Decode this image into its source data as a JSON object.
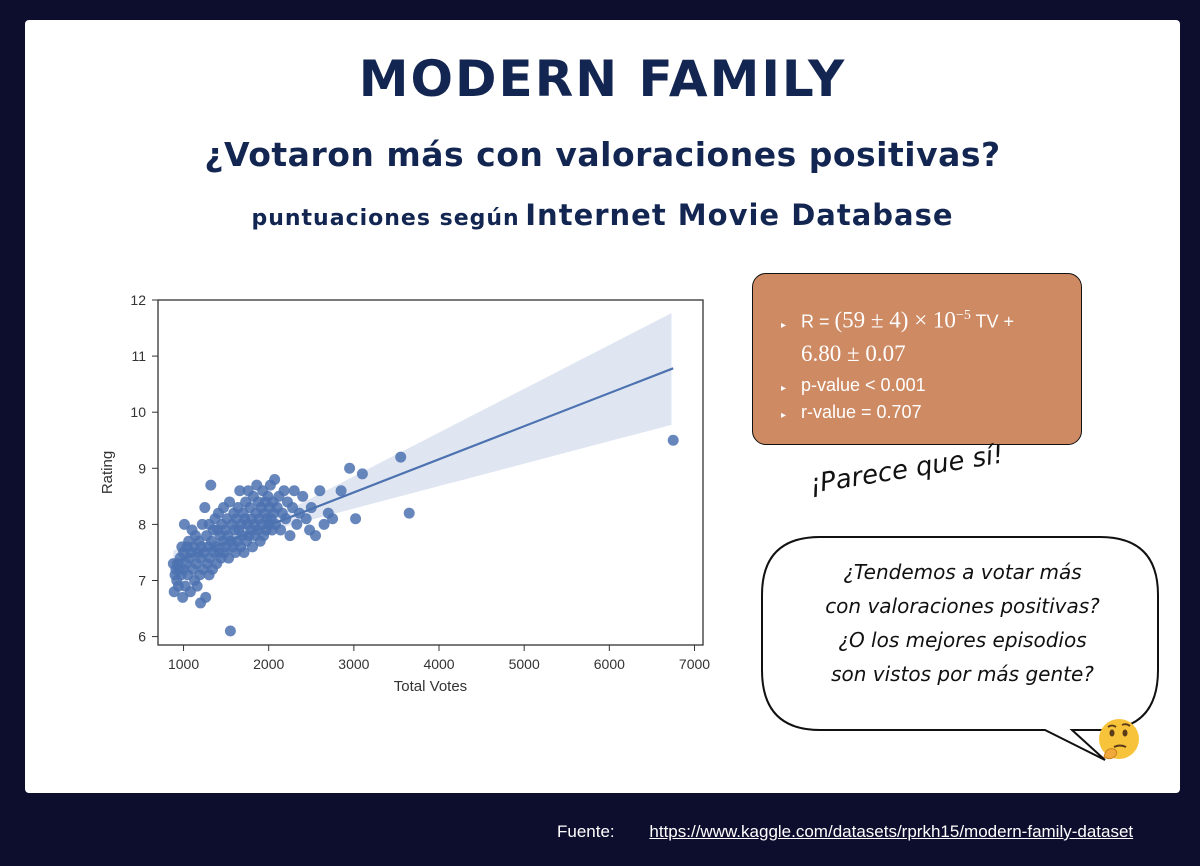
{
  "header": {
    "title": "MODERN FAMILY",
    "subtitle": "¿Votaron más con valoraciones positivas?",
    "source_prefix": "puntuaciones según",
    "source_name": "Internet Movie Database"
  },
  "stats": {
    "formula_r": "R = ",
    "formula_main": "(59 ± 4) × 10",
    "formula_exp": "−5",
    "formula_tv": " TV +",
    "formula_intercept": "6.80 ± 0.07",
    "pvalue": "p-value < 0.001",
    "rvalue": "r-value = 0.707"
  },
  "annotation": "¡Parece que sí!",
  "bubble": {
    "line1": "¿Tendemos a votar más",
    "line2": "con valoraciones positivas?",
    "line3": "¿O los mejores episodios",
    "line4": "son vistos por más gente?"
  },
  "emoji": "thinking-face",
  "footer": {
    "label": "Fuente:",
    "url": "https://www.kaggle.com/datasets/rprkh15/modern-family-dataset"
  },
  "colors": {
    "background": "#0d0d2e",
    "title": "#132652",
    "points": "#4c72b0",
    "stats_box": "#cd8a63"
  },
  "chart_data": {
    "type": "scatter",
    "xlabel": "Total Votes",
    "ylabel": "Rating",
    "xlim": [
      700,
      7100
    ],
    "ylim": [
      5.85,
      12
    ],
    "xticks": [
      1000,
      2000,
      3000,
      4000,
      5000,
      6000,
      7000
    ],
    "yticks": [
      6,
      7,
      8,
      9,
      10,
      11,
      12
    ],
    "regression": {
      "slope": 0.00059,
      "intercept": 6.8,
      "x_range": [
        880,
        6750
      ]
    },
    "points": [
      [
        880,
        7.3
      ],
      [
        890,
        6.8
      ],
      [
        900,
        7.1
      ],
      [
        910,
        7.2
      ],
      [
        920,
        7.0
      ],
      [
        930,
        7.3
      ],
      [
        940,
        6.9
      ],
      [
        950,
        7.2
      ],
      [
        960,
        7.4
      ],
      [
        970,
        7.1
      ],
      [
        980,
        7.6
      ],
      [
        990,
        6.7
      ],
      [
        1000,
        7.5
      ],
      [
        1000,
        7.2
      ],
      [
        1010,
        8.0
      ],
      [
        1020,
        6.9
      ],
      [
        1030,
        7.3
      ],
      [
        1040,
        7.6
      ],
      [
        1050,
        7.1
      ],
      [
        1060,
        7.7
      ],
      [
        1070,
        7.4
      ],
      [
        1080,
        6.8
      ],
      [
        1090,
        7.5
      ],
      [
        1100,
        7.9
      ],
      [
        1110,
        7.2
      ],
      [
        1120,
        7.6
      ],
      [
        1130,
        7.0
      ],
      [
        1140,
        7.8
      ],
      [
        1150,
        7.3
      ],
      [
        1160,
        6.9
      ],
      [
        1170,
        7.5
      ],
      [
        1180,
        7.7
      ],
      [
        1190,
        7.1
      ],
      [
        1200,
        7.4
      ],
      [
        1200,
        6.6
      ],
      [
        1210,
        7.6
      ],
      [
        1220,
        8.0
      ],
      [
        1230,
        7.2
      ],
      [
        1240,
        7.5
      ],
      [
        1250,
        8.3
      ],
      [
        1260,
        6.7
      ],
      [
        1270,
        7.8
      ],
      [
        1280,
        7.3
      ],
      [
        1290,
        7.6
      ],
      [
        1300,
        8.0
      ],
      [
        1300,
        7.1
      ],
      [
        1310,
        7.4
      ],
      [
        1320,
        8.7
      ],
      [
        1330,
        7.7
      ],
      [
        1340,
        7.2
      ],
      [
        1350,
        7.9
      ],
      [
        1360,
        7.5
      ],
      [
        1370,
        8.1
      ],
      [
        1380,
        7.6
      ],
      [
        1390,
        7.3
      ],
      [
        1400,
        7.9
      ],
      [
        1410,
        8.2
      ],
      [
        1420,
        7.5
      ],
      [
        1430,
        7.8
      ],
      [
        1440,
        7.4
      ],
      [
        1450,
        8.0
      ],
      [
        1460,
        7.7
      ],
      [
        1470,
        8.3
      ],
      [
        1480,
        7.5
      ],
      [
        1490,
        7.9
      ],
      [
        1500,
        7.6
      ],
      [
        1510,
        8.1
      ],
      [
        1520,
        7.8
      ],
      [
        1530,
        7.4
      ],
      [
        1540,
        8.4
      ],
      [
        1550,
        6.1
      ],
      [
        1560,
        7.7
      ],
      [
        1570,
        8.0
      ],
      [
        1580,
        7.6
      ],
      [
        1590,
        8.2
      ],
      [
        1600,
        7.9
      ],
      [
        1610,
        7.5
      ],
      [
        1620,
        8.1
      ],
      [
        1630,
        7.7
      ],
      [
        1640,
        8.3
      ],
      [
        1650,
        7.9
      ],
      [
        1660,
        8.6
      ],
      [
        1670,
        7.6
      ],
      [
        1680,
        8.0
      ],
      [
        1690,
        7.8
      ],
      [
        1700,
        8.2
      ],
      [
        1710,
        7.5
      ],
      [
        1720,
        8.1
      ],
      [
        1730,
        8.4
      ],
      [
        1740,
        7.7
      ],
      [
        1750,
        8.0
      ],
      [
        1760,
        8.6
      ],
      [
        1770,
        7.8
      ],
      [
        1780,
        8.3
      ],
      [
        1790,
        7.9
      ],
      [
        1800,
        8.1
      ],
      [
        1810,
        7.6
      ],
      [
        1820,
        8.5
      ],
      [
        1830,
        8.0
      ],
      [
        1840,
        7.8
      ],
      [
        1850,
        8.2
      ],
      [
        1860,
        8.7
      ],
      [
        1870,
        7.9
      ],
      [
        1880,
        8.4
      ],
      [
        1890,
        8.1
      ],
      [
        1900,
        7.7
      ],
      [
        1910,
        8.3
      ],
      [
        1920,
        8.0
      ],
      [
        1930,
        8.6
      ],
      [
        1940,
        7.8
      ],
      [
        1950,
        8.2
      ],
      [
        1960,
        8.4
      ],
      [
        1970,
        7.9
      ],
      [
        1980,
        8.1
      ],
      [
        1990,
        8.5
      ],
      [
        2000,
        8.0
      ],
      [
        2010,
        8.3
      ],
      [
        2020,
        8.7
      ],
      [
        2030,
        8.1
      ],
      [
        2040,
        7.9
      ],
      [
        2050,
        8.4
      ],
      [
        2060,
        8.2
      ],
      [
        2070,
        8.8
      ],
      [
        2080,
        8.0
      ],
      [
        2100,
        8.3
      ],
      [
        2120,
        8.5
      ],
      [
        2140,
        7.9
      ],
      [
        2160,
        8.2
      ],
      [
        2180,
        8.6
      ],
      [
        2200,
        8.1
      ],
      [
        2220,
        8.4
      ],
      [
        2250,
        7.8
      ],
      [
        2280,
        8.3
      ],
      [
        2300,
        8.6
      ],
      [
        2330,
        8.0
      ],
      [
        2360,
        8.2
      ],
      [
        2400,
        8.5
      ],
      [
        2440,
        8.1
      ],
      [
        2480,
        7.9
      ],
      [
        2500,
        8.3
      ],
      [
        2550,
        7.8
      ],
      [
        2600,
        8.6
      ],
      [
        2650,
        8.0
      ],
      [
        2700,
        8.2
      ],
      [
        2750,
        8.1
      ],
      [
        2850,
        8.6
      ],
      [
        2950,
        9.0
      ],
      [
        3020,
        8.1
      ],
      [
        3100,
        8.9
      ],
      [
        3550,
        9.2
      ],
      [
        3650,
        8.2
      ],
      [
        6750,
        9.5
      ]
    ]
  }
}
